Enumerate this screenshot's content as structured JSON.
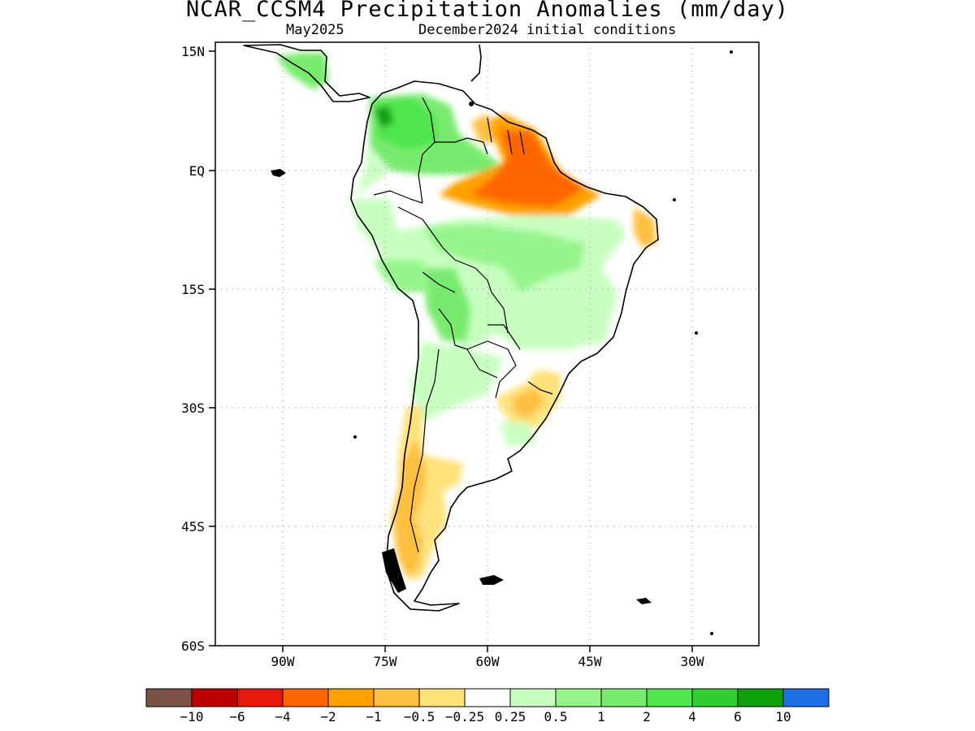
{
  "title": "NCAR_CCSM4 Precipitation Anomalies (mm/day)",
  "subtitle_left": "May2025",
  "subtitle_right": "December2024 initial conditions",
  "lat_labels": [
    "15N",
    "EQ",
    "15S",
    "30S",
    "45S",
    "60S"
  ],
  "lon_labels": [
    "90W",
    "75W",
    "60W",
    "45W",
    "30W"
  ],
  "colorbar": {
    "colors": [
      "#7a5246",
      "#c00000",
      "#e51a0a",
      "#ff6600",
      "#ffa000",
      "#ffc040",
      "#ffe27a",
      "#ffffff",
      "#c8ffc0",
      "#96f58c",
      "#78eb6e",
      "#50e650",
      "#32cd32",
      "#0ca00c",
      "#1e6ee6"
    ],
    "labels": [
      "-10",
      "-6",
      "-4",
      "-2",
      "-1",
      "-0.5",
      "-0.25",
      "0.25",
      "0.5",
      "1",
      "2",
      "4",
      "6",
      "10"
    ]
  }
}
